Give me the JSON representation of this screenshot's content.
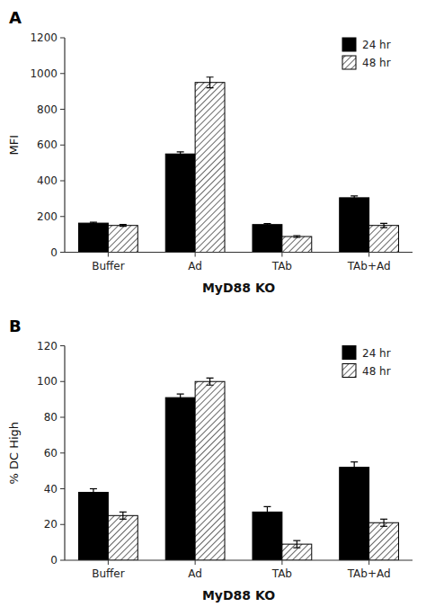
{
  "chart_data": [
    {
      "type": "bar",
      "title": "A",
      "xlabel": "MyD88 KO",
      "ylabel": "MFI",
      "categories": [
        "Buffer",
        "Ad",
        "TAb",
        "TAb+Ad"
      ],
      "series": [
        {
          "name": "24 hr",
          "color": "#000000",
          "values": [
            163,
            550,
            155,
            305
          ],
          "errors": [
            5,
            12,
            5,
            10
          ]
        },
        {
          "name": "48 hr",
          "color": "#ffffff",
          "values": [
            150,
            950,
            88,
            150
          ],
          "errors": [
            5,
            30,
            5,
            12
          ]
        }
      ],
      "ylim": [
        0,
        1200
      ],
      "yticks": [
        0,
        200,
        400,
        600,
        800,
        1000,
        1200
      ],
      "grid": false,
      "legend": "upper right"
    },
    {
      "type": "bar",
      "title": "B",
      "xlabel": "MyD88 KO",
      "ylabel": "% DC High",
      "categories": [
        "Buffer",
        "Ad",
        "TAb",
        "TAb+Ad"
      ],
      "series": [
        {
          "name": "24 hr",
          "color": "#000000",
          "values": [
            38,
            91,
            27,
            52
          ],
          "errors": [
            2,
            2,
            3,
            3
          ]
        },
        {
          "name": "48 hr",
          "color": "#ffffff",
          "values": [
            25,
            100,
            9,
            21
          ],
          "errors": [
            2,
            2,
            2,
            2
          ]
        }
      ],
      "ylim": [
        0,
        120
      ],
      "yticks": [
        0,
        20,
        40,
        60,
        80,
        100,
        120
      ],
      "grid": false,
      "legend": "upper right"
    }
  ]
}
